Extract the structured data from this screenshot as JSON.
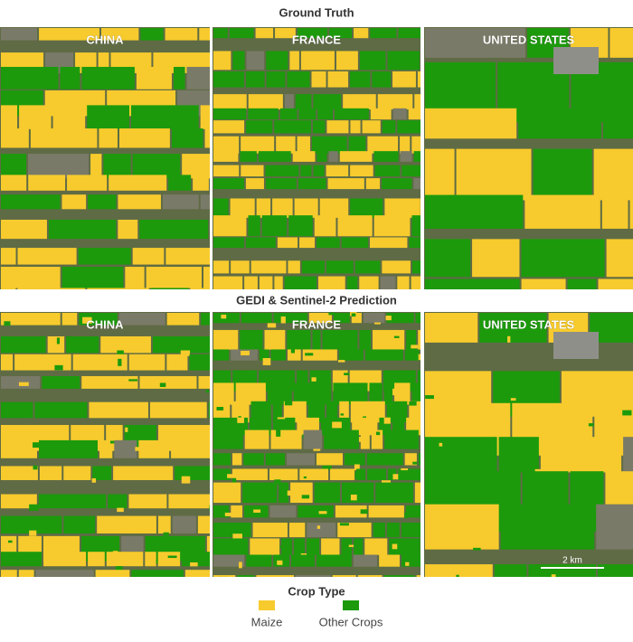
{
  "rows": [
    {
      "title": "Ground Truth",
      "panels": [
        "CHINA",
        "FRANCE",
        "UNITED STATES"
      ]
    },
    {
      "title": "GEDI & Sentinel-2 Prediction",
      "panels": [
        "CHINA",
        "FRANCE",
        "UNITED STATES"
      ]
    }
  ],
  "scale_bar": "2 km",
  "legend": {
    "title": "Crop Type",
    "items": [
      {
        "label": "Maize",
        "color": "#f7cb2d"
      },
      {
        "label": "Other Crops",
        "color": "#1c9a0c"
      }
    ]
  }
}
